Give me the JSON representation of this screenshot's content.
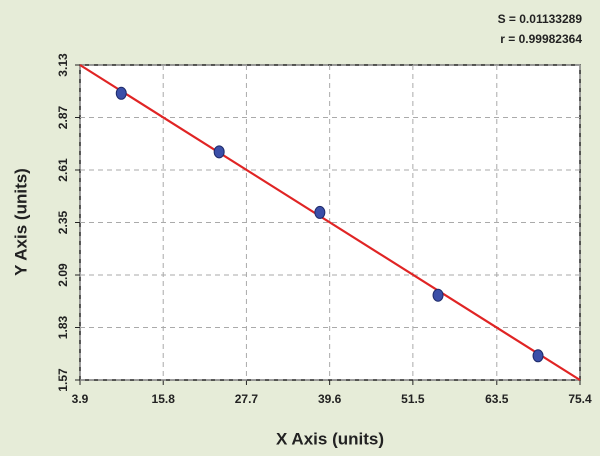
{
  "chart_data": {
    "type": "scatter",
    "annotations": [
      "S = 0.01133289",
      "r = 0.99982364"
    ],
    "x_label": "X Axis (units)",
    "y_label": "Y Axis (units)",
    "series": [
      {
        "color": "#3b4fa8",
        "x": [
          9.8,
          23.8,
          38.2,
          55.1,
          69.4
        ],
        "values": [
          2.99,
          2.7,
          2.4,
          1.99,
          1.69
        ]
      }
    ],
    "fit_line": {
      "color": "#e02424",
      "x": [
        3.9,
        75.4
      ],
      "values": [
        3.13,
        1.57
      ]
    },
    "xlim": [
      3.9,
      75.4
    ],
    "xticks": [
      3.9,
      15.8,
      27.7,
      39.6,
      51.5,
      63.5,
      75.4
    ],
    "ylim": [
      1.57,
      3.13
    ],
    "yticks": [
      1.57,
      1.83,
      2.09,
      2.35,
      2.61,
      2.87,
      3.13
    ],
    "grid": true
  }
}
